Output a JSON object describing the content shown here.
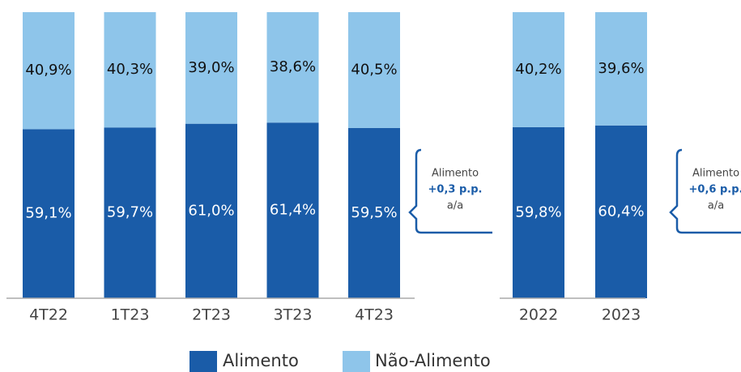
{
  "chart_data": [
    {
      "type": "stacked_bar",
      "categories": [
        "4T22",
        "1T23",
        "2T23",
        "3T23",
        "4T23"
      ],
      "series": [
        {
          "name": "Alimento",
          "color": "#1a5ca8",
          "values": [
            59.1,
            59.7,
            61.0,
            61.4,
            59.5
          ],
          "value_labels": [
            "59,1%",
            "59,7%",
            "61,0%",
            "61,4%",
            "59,5%"
          ]
        },
        {
          "name": "Não-Alimento",
          "color": "#8ec5ea",
          "values": [
            40.9,
            40.3,
            39.0,
            38.6,
            40.5
          ],
          "value_labels": [
            "40,9%",
            "40,3%",
            "39,0%",
            "38,6%",
            "40,5%"
          ]
        }
      ],
      "ylim": [
        0,
        100
      ],
      "annotation": [
        "Alimento",
        "+0,3 p.p.",
        "a/a"
      ]
    },
    {
      "type": "stacked_bar",
      "categories": [
        "2022",
        "2023"
      ],
      "series": [
        {
          "color": "#1a5ca8",
          "values": [
            59.8,
            60.4
          ],
          "value_labels": [
            "59,8%",
            "60,4%"
          ]
        },
        {
          "color": "#8ec5ea",
          "values": [
            40.2,
            39.6
          ],
          "value_labels": [
            "40,2%",
            "39,6%"
          ]
        }
      ],
      "ylim": [
        0,
        100
      ],
      "annotation": [
        "Alimento",
        "+0,6 p.p.",
        "a/a"
      ]
    }
  ]
}
